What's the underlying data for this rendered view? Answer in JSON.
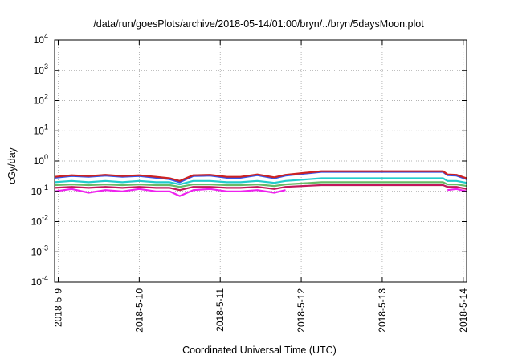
{
  "chart_data": {
    "type": "line",
    "title": "/data/run/goesPlots/archive/2018-05-14/01:00/bryn/../bryn/5daysMoon.plot",
    "xlabel": "Coordinated Universal Time (UTC)",
    "ylabel": "cGy/day",
    "y_scale": "log",
    "ylim": [
      0.0001,
      10000
    ],
    "xlim": [
      "2018-05-08T22:56",
      "2018-05-14T01:00"
    ],
    "grid": true,
    "y_ticks": [
      {
        "base": "10",
        "exp": "-4"
      },
      {
        "base": "10",
        "exp": "-3"
      },
      {
        "base": "10",
        "exp": "-2"
      },
      {
        "base": "10",
        "exp": "-1"
      },
      {
        "base": "10",
        "exp": "0"
      },
      {
        "base": "10",
        "exp": "1"
      },
      {
        "base": "10",
        "exp": "2"
      },
      {
        "base": "10",
        "exp": "3"
      },
      {
        "base": "10",
        "exp": "4"
      }
    ],
    "x_ticks": [
      "2018-5-9",
      "2018-5-10",
      "2018-5-11",
      "2018-5-12",
      "2018-5-13",
      "2018-5-14"
    ],
    "x_tick_dates": [
      "2018-05-09",
      "2018-05-10",
      "2018-05-11",
      "2018-05-12",
      "2018-05-13",
      "2018-05-14"
    ],
    "x": [
      "2018-05-08T22:56",
      "2018-05-09T04:00",
      "2018-05-09T09:00",
      "2018-05-09T14:00",
      "2018-05-09T19:00",
      "2018-05-10T00:00",
      "2018-05-10T05:00",
      "2018-05-10T09:00",
      "2018-05-10T12:00",
      "2018-05-10T16:00",
      "2018-05-10T21:00",
      "2018-05-11T02:00",
      "2018-05-11T06:00",
      "2018-05-11T11:00",
      "2018-05-11T16:00",
      "2018-05-11T19:20",
      "2018-05-12T06:00",
      "2018-05-12T18:00",
      "2018-05-13T06:00",
      "2018-05-13T18:00",
      "2018-05-13T19:20",
      "2018-05-13T22:00",
      "2018-05-14T01:00"
    ],
    "series": [
      {
        "color": "#ee22ee",
        "values": [
          0.1,
          0.12,
          0.09,
          0.11,
          0.1,
          0.12,
          0.1,
          0.1,
          0.07,
          0.11,
          0.12,
          0.1,
          0.1,
          0.11,
          0.09,
          0.11,
          null,
          null,
          null,
          null,
          0.11,
          0.12,
          0.1
        ]
      },
      {
        "color": "#c2185b",
        "values": [
          0.13,
          0.14,
          0.13,
          0.14,
          0.13,
          0.14,
          0.13,
          0.13,
          0.11,
          0.14,
          0.14,
          0.13,
          0.13,
          0.14,
          0.12,
          0.14,
          0.16,
          0.16,
          0.16,
          0.16,
          0.14,
          0.14,
          0.12
        ]
      },
      {
        "color": "#66bb66",
        "values": [
          0.16,
          0.17,
          0.16,
          0.17,
          0.16,
          0.17,
          0.16,
          0.16,
          0.14,
          0.17,
          0.17,
          0.16,
          0.16,
          0.17,
          0.15,
          0.17,
          0.2,
          0.2,
          0.2,
          0.2,
          0.17,
          0.17,
          0.15
        ]
      },
      {
        "color": "#22cccc",
        "values": [
          0.2,
          0.22,
          0.2,
          0.22,
          0.2,
          0.22,
          0.2,
          0.2,
          0.17,
          0.22,
          0.22,
          0.2,
          0.2,
          0.22,
          0.19,
          0.22,
          0.27,
          0.27,
          0.27,
          0.27,
          0.22,
          0.22,
          0.19
        ]
      },
      {
        "color": "#3355ee",
        "values": [
          0.28,
          0.32,
          0.3,
          0.33,
          0.3,
          0.32,
          0.28,
          0.25,
          0.2,
          0.32,
          0.33,
          0.28,
          0.28,
          0.34,
          0.27,
          0.33,
          0.44,
          0.44,
          0.44,
          0.44,
          0.34,
          0.33,
          0.25
        ]
      },
      {
        "color": "#cc2222",
        "values": [
          0.3,
          0.34,
          0.32,
          0.35,
          0.32,
          0.34,
          0.3,
          0.27,
          0.22,
          0.34,
          0.35,
          0.3,
          0.3,
          0.36,
          0.29,
          0.35,
          0.46,
          0.46,
          0.46,
          0.46,
          0.36,
          0.35,
          0.27
        ]
      }
    ]
  }
}
